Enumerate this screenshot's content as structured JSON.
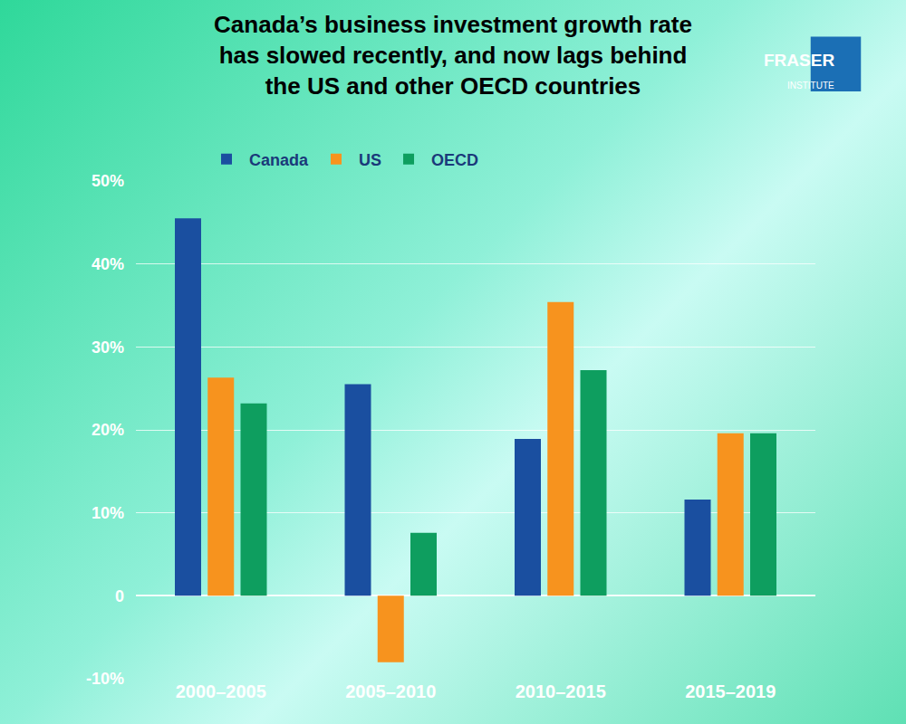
{
  "chart_data": {
    "type": "bar",
    "title": "Canada’s business investment growth rate\nhas slowed recently, and now lags behind\nthe US and other OECD countries",
    "categories": [
      "2000–2005",
      "2005–2010",
      "2010–2015",
      "2015–2019"
    ],
    "series": [
      {
        "name": "Canada",
        "color": "#1a4fa0",
        "values": [
          45.5,
          25.5,
          18.9,
          11.6
        ]
      },
      {
        "name": "US",
        "color": "#f7931e",
        "values": [
          26.3,
          -8,
          35.4,
          19.6
        ]
      },
      {
        "name": "OECD",
        "color": "#0e9e5f",
        "values": [
          23.2,
          7.6,
          27.2,
          19.6
        ]
      }
    ],
    "ylim": [
      -10,
      50
    ],
    "yticks": [
      {
        "value": -10,
        "label": "-10%"
      },
      0,
      {
        "value": 10,
        "label": "10%"
      },
      {
        "value": 20,
        "label": "20%"
      },
      {
        "value": 30,
        "label": "30%"
      },
      {
        "value": 40,
        "label": "40%"
      },
      {
        "value": 50,
        "label": "50%"
      }
    ],
    "grid": true,
    "legend": "top-left",
    "annotations": [
      {
        "text": "FRASER"
      },
      {
        "text": "INSTITUTE"
      }
    ]
  }
}
